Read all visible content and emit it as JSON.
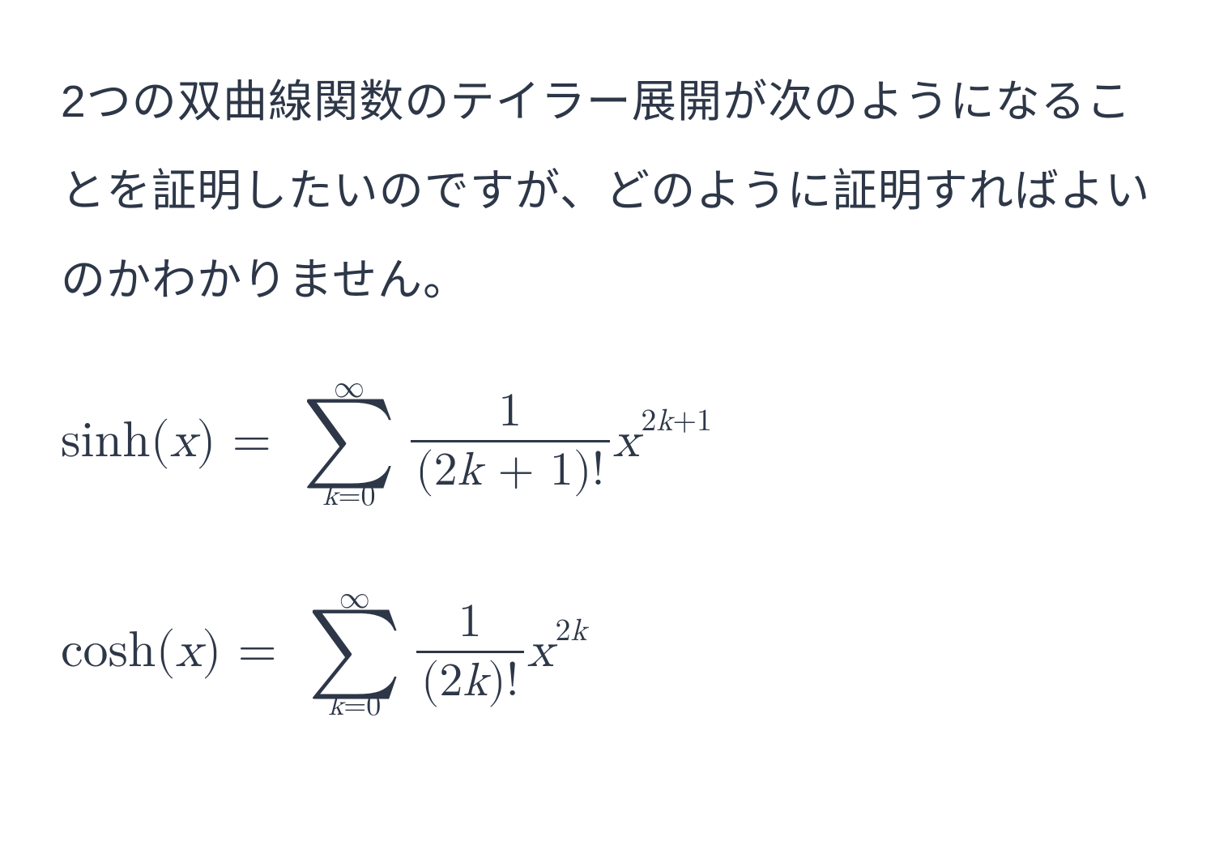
{
  "text_color": "#2d3748",
  "background_color": "#ffffff",
  "body_fontsize": 55,
  "math_fontsize": 62,
  "intro_text": "2つの双曲線関数のテイラー展開が次のようになることを証明したいのですが、どのように証明すればよいのかわかりません。",
  "formula_sinh": {
    "lhs_func": "sinh",
    "lhs_arg": "x",
    "equals": "=",
    "sum_top": "∞",
    "sum_bot_var": "k",
    "sum_bot_eq": "=",
    "sum_bot_val": "0",
    "frac_num": "1",
    "frac_den_open": "(",
    "frac_den_coef": "2",
    "frac_den_var": "k",
    "frac_den_plus": " + 1",
    "frac_den_close": ")!",
    "term_base": "x",
    "term_exp_coef": "2",
    "term_exp_var": "k",
    "term_exp_plus": "+1"
  },
  "formula_cosh": {
    "lhs_func": "cosh",
    "lhs_arg": "x",
    "equals": "=",
    "sum_top": "∞",
    "sum_bot_var": "k",
    "sum_bot_eq": "=",
    "sum_bot_val": "0",
    "frac_num": "1",
    "frac_den_open": "(",
    "frac_den_coef": "2",
    "frac_den_var": "k",
    "frac_den_close": ")!",
    "term_base": "x",
    "term_exp_coef": "2",
    "term_exp_var": "k"
  }
}
